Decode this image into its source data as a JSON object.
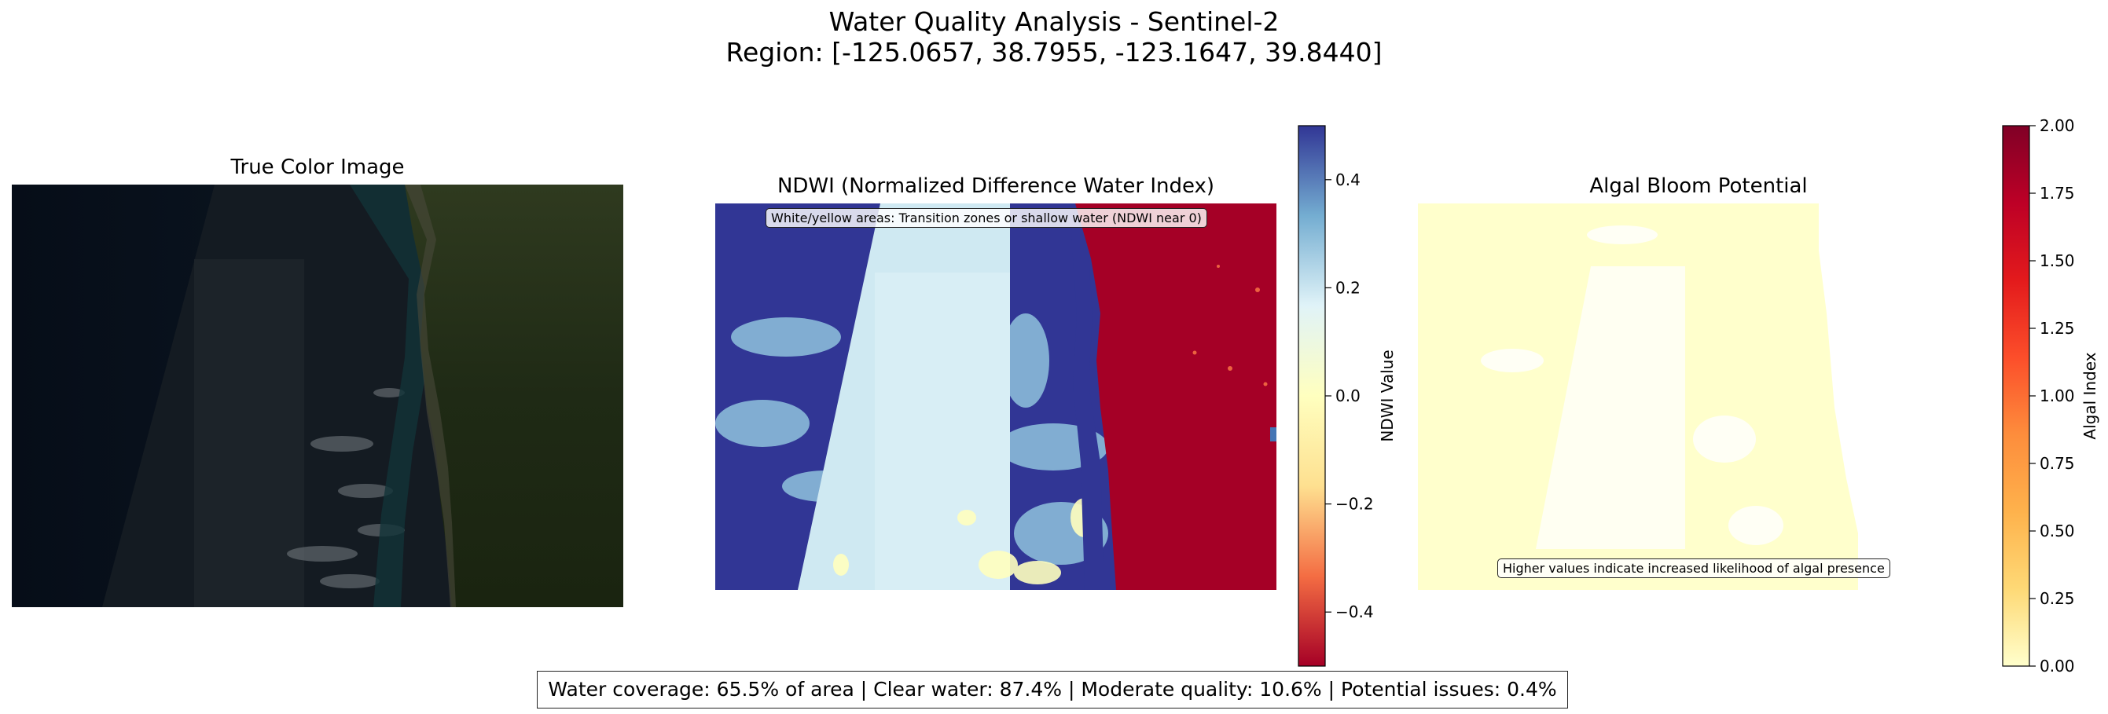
{
  "figure": {
    "title_line1": "Water Quality Analysis - Sentinel-2",
    "title_line2": "Region: [-125.0657, 38.7955, -123.1647, 39.8440]"
  },
  "panels": {
    "true_color": {
      "title": "True Color Image"
    },
    "ndwi": {
      "title": "NDWI (Normalized Difference Water Index)",
      "note": "White/yellow areas: Transition zones or shallow water (NDWI near 0)"
    },
    "algal": {
      "title": "Algal Bloom Potential",
      "note": "Higher values indicate increased likelihood of algal presence"
    }
  },
  "chart_data": [
    {
      "type": "heatmap",
      "title": "NDWI (Normalized Difference Water Index)",
      "colormap": "RdYlBu",
      "colorbar": {
        "label": "NDWI Value",
        "range": [
          -0.5,
          0.5
        ],
        "ticks": [
          -0.4,
          -0.2,
          0.0,
          0.2,
          0.4
        ],
        "tick_labels": [
          "−0.4",
          "−0.2",
          "0.0",
          "0.2",
          "0.4"
        ],
        "colors": [
          "#a50026",
          "#f46d43",
          "#fee090",
          "#ffffbf",
          "#e0f3f8",
          "#74add1",
          "#313695"
        ]
      }
    },
    {
      "type": "heatmap",
      "title": "Algal Bloom Potential",
      "colormap": "YlOrRd",
      "colorbar": {
        "label": "Algal Index",
        "range": [
          0.0,
          2.0
        ],
        "ticks": [
          0.0,
          0.25,
          0.5,
          0.75,
          1.0,
          1.25,
          1.5,
          1.75,
          2.0
        ],
        "tick_labels": [
          "0.00",
          "0.25",
          "0.50",
          "0.75",
          "1.00",
          "1.25",
          "1.50",
          "1.75",
          "2.00"
        ],
        "colors": [
          "#ffffcc",
          "#fed976",
          "#feb24c",
          "#fd8d3c",
          "#fc4e2a",
          "#e31a1c",
          "#bd0026",
          "#800026"
        ]
      }
    }
  ],
  "stats": {
    "text": "Water coverage: 65.5% of area | Clear water: 87.4% | Moderate quality: 10.6% | Potential issues: 0.4%"
  }
}
